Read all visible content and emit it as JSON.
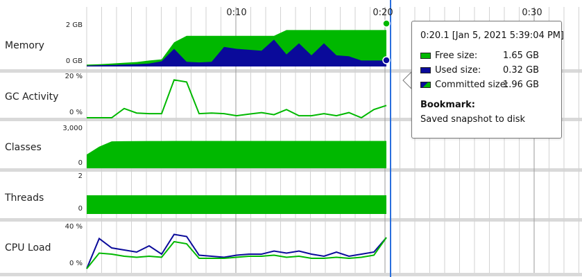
{
  "colors": {
    "green": "#00b800",
    "blue": "#0a0a9a",
    "cursor": "#2a6fdd",
    "separator": "#d9d9d9",
    "grid_major": "#9a9a9a",
    "grid_minor": "#d2d2d2"
  },
  "time_axis": {
    "labels": [
      "0:10",
      "0:20",
      "0:30"
    ]
  },
  "lanes": [
    {
      "name": "Memory",
      "max_label": "2 GB",
      "min_label": "0 GB"
    },
    {
      "name": "GC Activity",
      "max_label": "20 %",
      "min_label": "0 %"
    },
    {
      "name": "Classes",
      "max_label": "3,000",
      "min_label": "0"
    },
    {
      "name": "Threads",
      "max_label": "2",
      "min_label": "0"
    },
    {
      "name": "CPU Load",
      "max_label": "40 %",
      "min_label": "0 %"
    }
  ],
  "series": {
    "memory_committed_gb": [
      0.1,
      0.12,
      0.16,
      0.2,
      0.24,
      0.32,
      0.38,
      1.3,
      1.65,
      1.65,
      1.65,
      1.65,
      1.65,
      1.65,
      1.65,
      1.65,
      1.96,
      1.96,
      1.96,
      1.96,
      1.96,
      1.96,
      1.96,
      1.96,
      1.96
    ],
    "memory_used_gb": [
      0.05,
      0.07,
      0.08,
      0.1,
      0.12,
      0.16,
      0.28,
      0.95,
      0.25,
      0.22,
      0.25,
      1.05,
      0.95,
      0.9,
      0.85,
      1.45,
      0.65,
      1.25,
      0.6,
      1.25,
      0.6,
      0.55,
      0.32,
      0.32,
      0.32
    ],
    "gc_activity_pct": [
      0,
      0,
      0,
      4.5,
      2.3,
      2,
      2,
      18.5,
      17.5,
      2,
      2.3,
      2,
      1,
      1.8,
      2.5,
      1.5,
      4,
      1,
      1,
      2,
      1,
      2.5,
      0,
      4,
      6
    ],
    "classes": [
      1050,
      1650,
      2050,
      2060,
      2070,
      2075,
      2075,
      2080,
      2080,
      2080,
      2080,
      2080,
      2080,
      2080,
      2080,
      2080,
      2080,
      2080,
      2080,
      2080,
      2080,
      2080,
      2080,
      2080,
      2080
    ],
    "threads": [
      1,
      1,
      1,
      1,
      1,
      1,
      1,
      1,
      1,
      1,
      1,
      1,
      1,
      1,
      1,
      1,
      1,
      1,
      1,
      1,
      1,
      1,
      1,
      1,
      1
    ],
    "cpu_total_pct": [
      0,
      29,
      20,
      18,
      16,
      22,
      14,
      33,
      31,
      13,
      12,
      11,
      13,
      14,
      14,
      17,
      15,
      17,
      14,
      12,
      16,
      12,
      14,
      16,
      30
    ],
    "cpu_gc_pct": [
      0,
      15,
      14,
      12,
      11,
      12,
      11,
      26,
      24,
      10,
      10,
      10,
      11,
      12,
      12,
      13,
      11,
      12,
      10,
      10,
      11,
      10,
      11,
      13,
      30
    ]
  },
  "tooltip": {
    "header": "0:20.1 [Jan 5, 2021 5:39:04 PM]",
    "rows": [
      {
        "label": "Free size:",
        "value": "1.65 GB",
        "swatch": "green"
      },
      {
        "label": "Used size:",
        "value": "0.32 GB",
        "swatch": "blue"
      },
      {
        "label": "Committed size:",
        "value": "1.96 GB",
        "swatch": "split"
      }
    ],
    "bookmark_title": "Bookmark:",
    "bookmark_text": "Saved snapshot to disk"
  }
}
